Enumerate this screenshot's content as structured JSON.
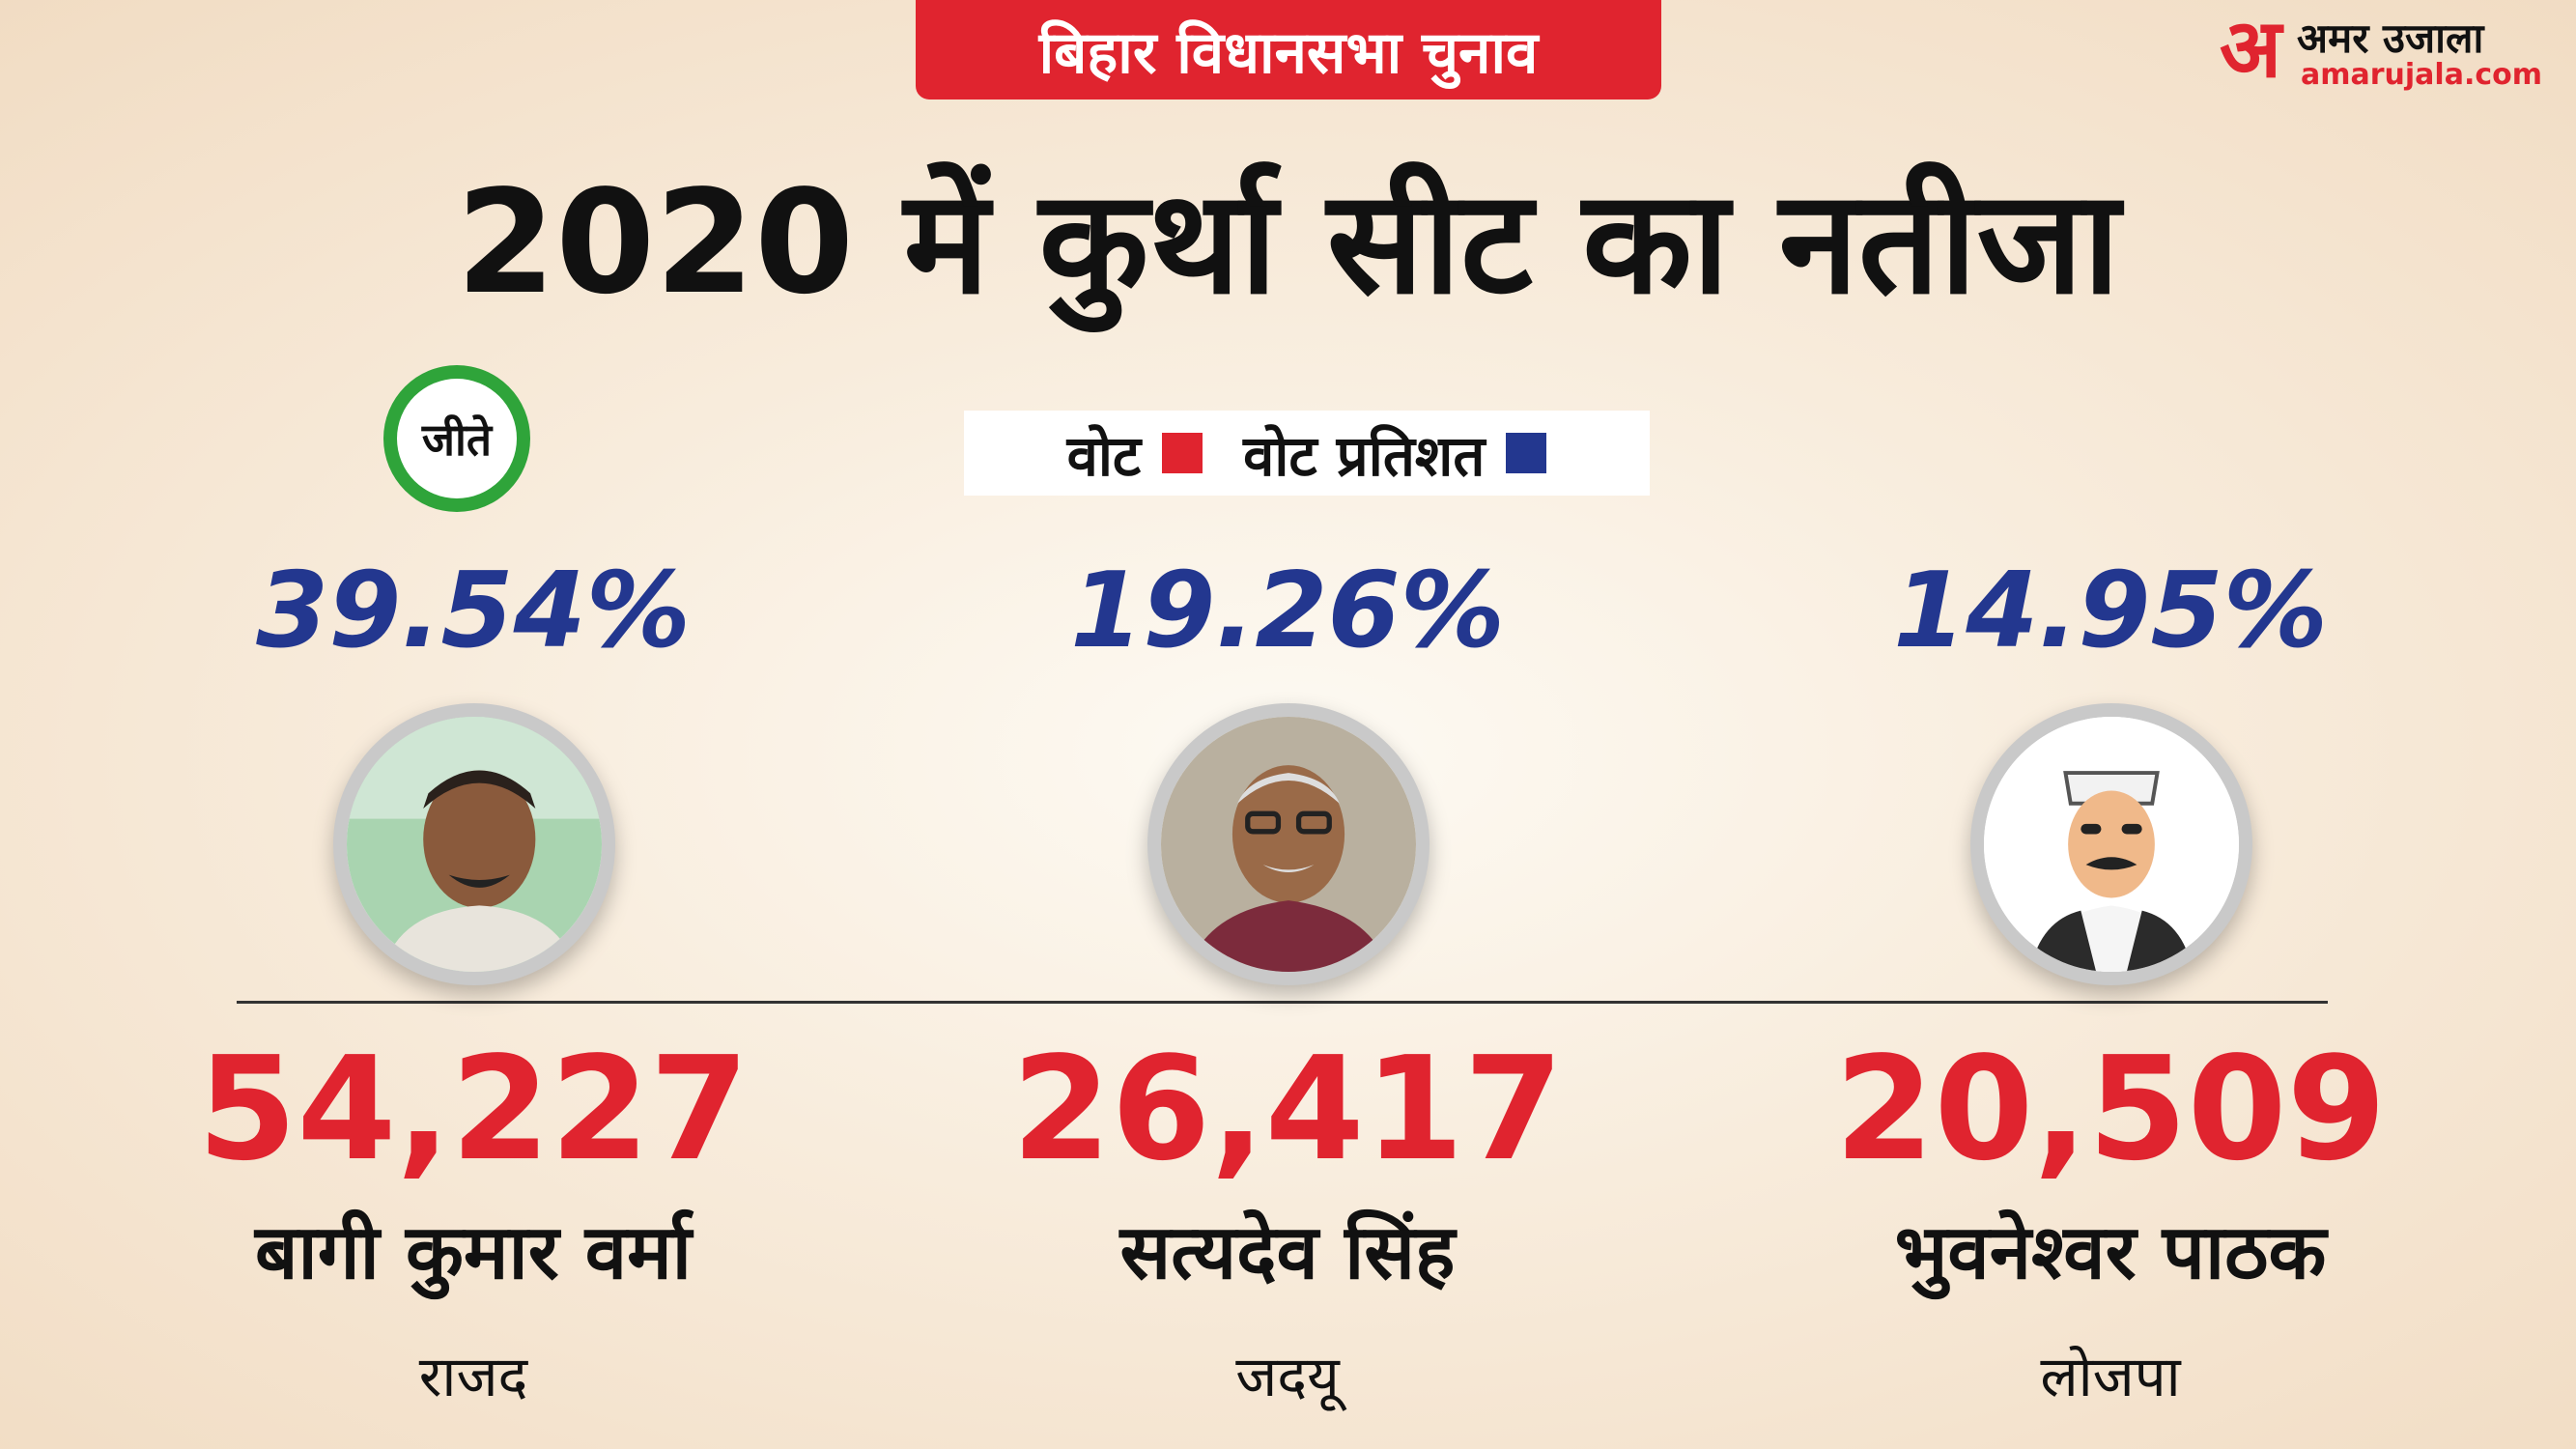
{
  "tag": "बिहार विधानसभा चुनाव",
  "brand": {
    "mark": "अ",
    "name": "अमर उजाला",
    "url": "amarujala.com"
  },
  "headline": "2020 में कुर्था सीट का नतीजा",
  "legend": {
    "votes_label": "वोट",
    "percent_label": "वोट प्रतिशत"
  },
  "winner_badge": "जीते",
  "colors": {
    "red": "#e0242f",
    "blue": "#23378f",
    "green": "#2fa43a"
  },
  "candidates": [
    {
      "percent": "39.54%",
      "votes": "54,227",
      "name": "बागी कुमार वर्मा",
      "party": "राजद",
      "photo_icon": "candidate-photo"
    },
    {
      "percent": "19.26%",
      "votes": "26,417",
      "name": "सत्यदेव सिंह",
      "party": "जदयू",
      "photo_icon": "candidate-photo"
    },
    {
      "percent": "14.95%",
      "votes": "20,509",
      "name": "भुवनेश्वर पाठक",
      "party": "लोजपा",
      "photo_icon": "cartoon-avatar"
    }
  ]
}
